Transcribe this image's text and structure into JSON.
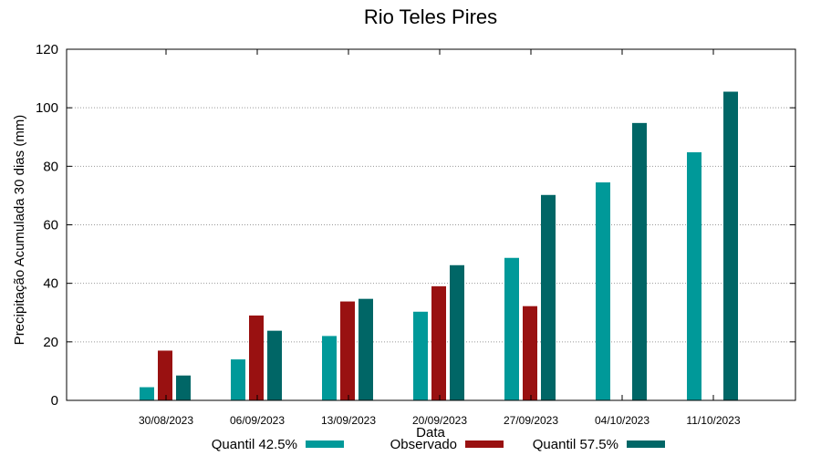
{
  "chart_data": {
    "type": "bar",
    "title": "Rio Teles Pires",
    "xlabel": "Data",
    "ylabel": "Precipitação Acumulada 30 dias (mm)",
    "ylim": [
      0,
      120
    ],
    "yticks": [
      0,
      20,
      40,
      60,
      80,
      100,
      120
    ],
    "grid": "horizontal dotted",
    "legend_position": "bottom",
    "categories": [
      "30/08/2023",
      "06/09/2023",
      "13/09/2023",
      "20/09/2023",
      "27/09/2023",
      "04/10/2023",
      "11/10/2023"
    ],
    "series": [
      {
        "name": "Quantil 42.5%",
        "color": "#009999",
        "values": [
          4.5,
          14,
          22,
          30.3,
          48.7,
          74.5,
          84.8
        ]
      },
      {
        "name": "Observado",
        "color": "#991111",
        "values": [
          17,
          29,
          33.8,
          39,
          32.2,
          null,
          null
        ]
      },
      {
        "name": "Quantil 57.5%",
        "color": "#006666",
        "values": [
          8.5,
          23.8,
          34.7,
          46.2,
          70.2,
          94.8,
          105.5
        ]
      }
    ]
  }
}
